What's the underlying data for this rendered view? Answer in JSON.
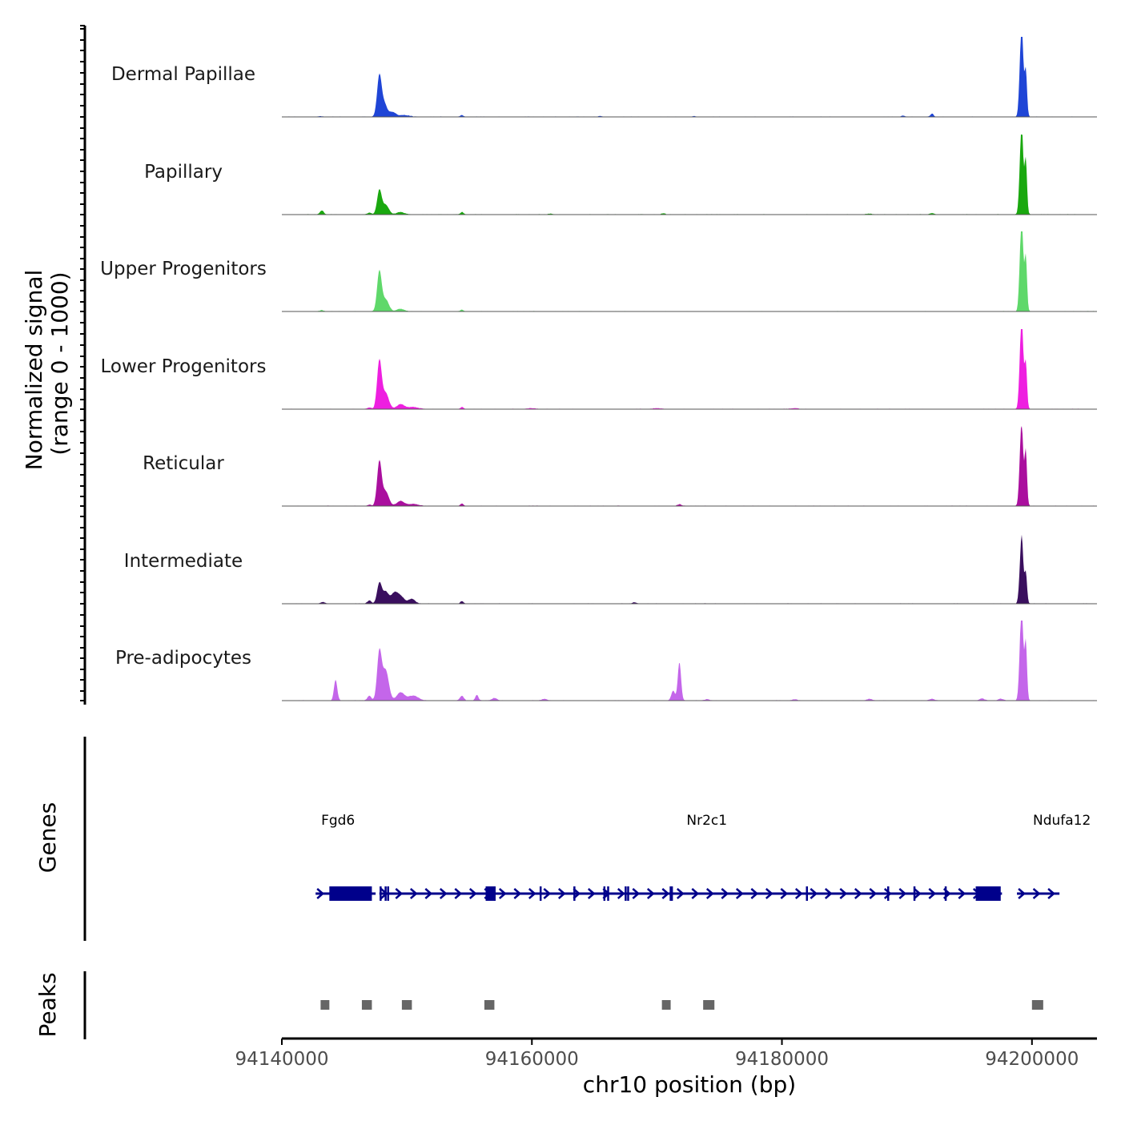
{
  "chart_data": {
    "type": "coverage-track",
    "title": "",
    "xlabel": "chr10 position (bp)",
    "ylabel_line1": "Normalized signal",
    "ylabel_line2": "(range 0 - 1000)",
    "chromosome": "chr10",
    "xlim": [
      94140000,
      94205200
    ],
    "x_ticks": [
      94140000,
      94160000,
      94180000,
      94200000
    ],
    "x_tick_labels": [
      "94140000",
      "94160000",
      "94180000",
      "94200000"
    ],
    "ylim": [
      0,
      1000
    ],
    "tracks": [
      {
        "name": "Dermal Papillae",
        "color": "#1f45d6",
        "peaks": [
          [
            94143100,
            5,
            150
          ],
          [
            94147800,
            520,
            180
          ],
          [
            94148200,
            150,
            200
          ],
          [
            94148800,
            60,
            300
          ],
          [
            94149800,
            20,
            400
          ],
          [
            94154400,
            20,
            120
          ],
          [
            94165500,
            10,
            120
          ],
          [
            94173000,
            8,
            150
          ],
          [
            94189700,
            12,
            150
          ],
          [
            94192000,
            40,
            120
          ],
          [
            94199050,
            400,
            110
          ],
          [
            94199200,
            1000,
            110
          ],
          [
            94199500,
            600,
            100
          ]
        ]
      },
      {
        "name": "Papillary",
        "color": "#1aa80f",
        "peaks": [
          [
            94143200,
            50,
            150
          ],
          [
            94147000,
            20,
            150
          ],
          [
            94147800,
            300,
            180
          ],
          [
            94148300,
            120,
            250
          ],
          [
            94149500,
            30,
            300
          ],
          [
            94154400,
            30,
            120
          ],
          [
            94161500,
            10,
            150
          ],
          [
            94170500,
            15,
            150
          ],
          [
            94187000,
            10,
            200
          ],
          [
            94192000,
            15,
            150
          ],
          [
            94199050,
            400,
            110
          ],
          [
            94199200,
            950,
            110
          ],
          [
            94199500,
            700,
            100
          ]
        ]
      },
      {
        "name": "Upper Progenitors",
        "color": "#5fd86a",
        "peaks": [
          [
            94143200,
            15,
            150
          ],
          [
            94147800,
            500,
            180
          ],
          [
            94148300,
            150,
            250
          ],
          [
            94149500,
            30,
            300
          ],
          [
            94154400,
            20,
            120
          ],
          [
            94199050,
            400,
            110
          ],
          [
            94199200,
            1000,
            110
          ],
          [
            94199500,
            700,
            100
          ]
        ]
      },
      {
        "name": "Lower Progenitors",
        "color": "#ee1fe0",
        "peaks": [
          [
            94147000,
            20,
            150
          ],
          [
            94147800,
            600,
            180
          ],
          [
            94148300,
            200,
            250
          ],
          [
            94149500,
            60,
            300
          ],
          [
            94150500,
            25,
            400
          ],
          [
            94154400,
            25,
            120
          ],
          [
            94160000,
            10,
            300
          ],
          [
            94170000,
            10,
            300
          ],
          [
            94181000,
            10,
            300
          ],
          [
            94199050,
            400,
            110
          ],
          [
            94199200,
            1000,
            110
          ],
          [
            94199500,
            600,
            100
          ]
        ]
      },
      {
        "name": "Reticular",
        "color": "#aa0f9e",
        "peaks": [
          [
            94147000,
            15,
            150
          ],
          [
            94147800,
            550,
            180
          ],
          [
            94148300,
            180,
            250
          ],
          [
            94149500,
            60,
            300
          ],
          [
            94150500,
            25,
            400
          ],
          [
            94154400,
            30,
            120
          ],
          [
            94171800,
            20,
            150
          ],
          [
            94199050,
            400,
            110
          ],
          [
            94199200,
            850,
            110
          ],
          [
            94199500,
            700,
            100
          ]
        ]
      },
      {
        "name": "Intermediate",
        "color": "#3a0f5e",
        "peaks": [
          [
            94143300,
            20,
            150
          ],
          [
            94147000,
            40,
            150
          ],
          [
            94147800,
            250,
            180
          ],
          [
            94148300,
            150,
            250
          ],
          [
            94149000,
            120,
            250
          ],
          [
            94149500,
            90,
            300
          ],
          [
            94150400,
            60,
            250
          ],
          [
            94154400,
            30,
            120
          ],
          [
            94168200,
            15,
            150
          ],
          [
            94199050,
            280,
            110
          ],
          [
            94199200,
            730,
            110
          ],
          [
            94199500,
            400,
            100
          ]
        ]
      },
      {
        "name": "Pre-adipocytes",
        "color": "#c466ea",
        "peaks": [
          [
            94144300,
            260,
            130
          ],
          [
            94147000,
            60,
            150
          ],
          [
            94147800,
            600,
            180
          ],
          [
            94148300,
            380,
            250
          ],
          [
            94149500,
            100,
            300
          ],
          [
            94150500,
            60,
            400
          ],
          [
            94154400,
            60,
            150
          ],
          [
            94155600,
            70,
            120
          ],
          [
            94157000,
            30,
            200
          ],
          [
            94161000,
            20,
            200
          ],
          [
            94171300,
            120,
            150
          ],
          [
            94171800,
            480,
            130
          ],
          [
            94174000,
            15,
            200
          ],
          [
            94181000,
            15,
            200
          ],
          [
            94187000,
            20,
            200
          ],
          [
            94192000,
            20,
            200
          ],
          [
            94196000,
            25,
            200
          ],
          [
            94197500,
            20,
            200
          ],
          [
            94199050,
            430,
            110
          ],
          [
            94199200,
            1000,
            110
          ],
          [
            94199500,
            750,
            100
          ]
        ]
      }
    ],
    "genes_label": "Genes",
    "gene_color": "#00008b",
    "genes": [
      {
        "name": "Fgd6",
        "label_x": 94142700,
        "start": 94142700,
        "end": 94147500,
        "exons": [
          [
            94143800,
            94147200
          ]
        ]
      },
      {
        "name": "Nr2c1",
        "label_x": 94172200,
        "start": 94147800,
        "end": 94197600,
        "exons": [
          [
            94156300,
            94157100
          ],
          [
            94195500,
            94197500
          ]
        ]
      },
      {
        "name": "Ndufa12",
        "label_x": 94200600,
        "start": 94198800,
        "end": 94202200,
        "exons": []
      }
    ],
    "peaks_label": "Peaks",
    "peak_color": "#666666",
    "peak_regions": [
      [
        94143100,
        94143800
      ],
      [
        94146400,
        94147200
      ],
      [
        94149600,
        94150400
      ],
      [
        94156200,
        94157000
      ],
      [
        94170400,
        94171100
      ],
      [
        94173700,
        94174600
      ],
      [
        94200000,
        94200900
      ]
    ]
  }
}
